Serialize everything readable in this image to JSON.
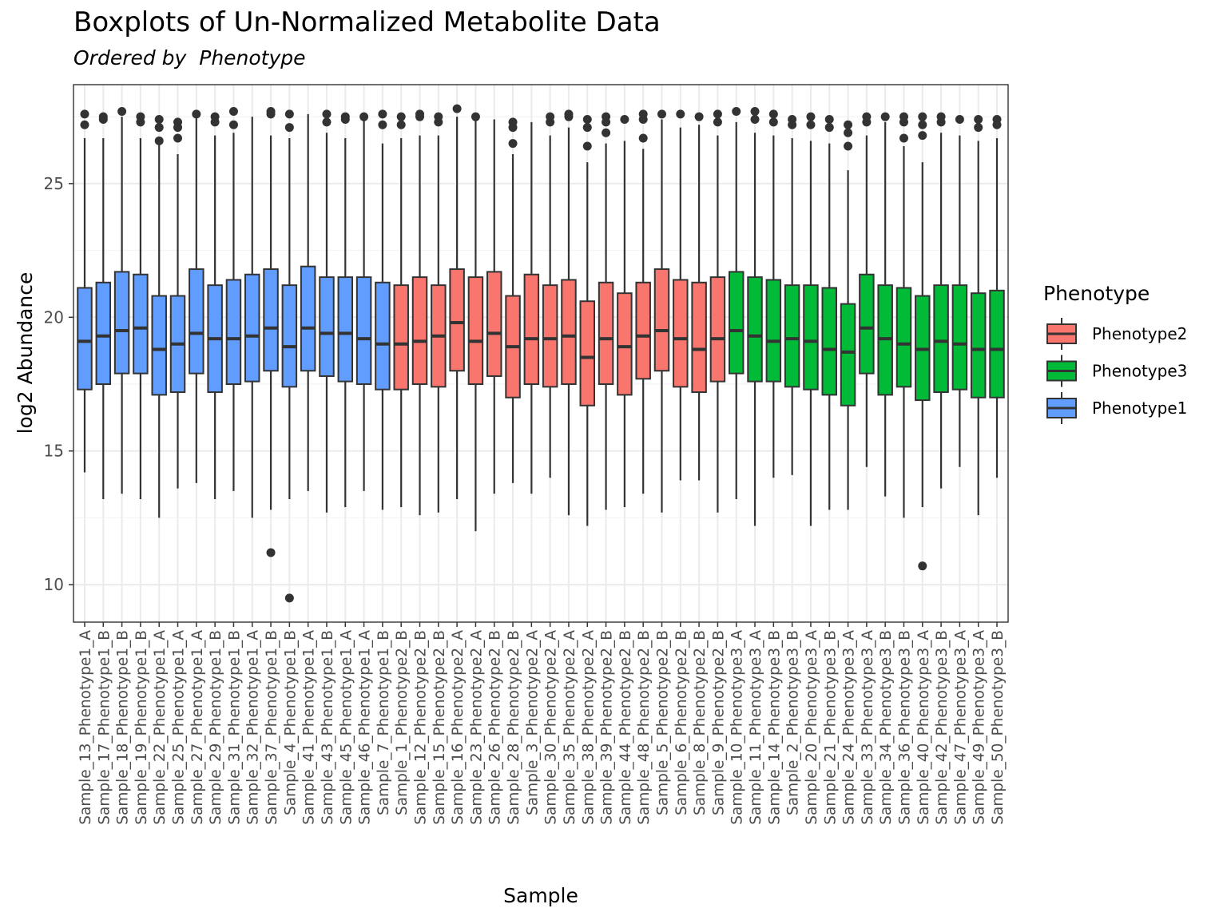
{
  "chart_data": {
    "type": "box",
    "title": "Boxplots of Un-Normalized Metabolite Data",
    "subtitle": "Ordered by  Phenotype",
    "xlabel": "Sample",
    "ylabel": "log2 Abundance",
    "ylim": [
      8.6,
      28.7
    ],
    "yticks": [
      10,
      15,
      20,
      25
    ],
    "grid": true,
    "legend": {
      "title": "Phenotype",
      "position": "right",
      "entries": [
        {
          "name": "Phenotype2",
          "color": "#F8766D"
        },
        {
          "name": "Phenotype3",
          "color": "#00BA38"
        },
        {
          "name": "Phenotype1",
          "color": "#619CFF"
        }
      ]
    },
    "colors": {
      "Phenotype1": "#619CFF",
      "Phenotype2": "#F8766D",
      "Phenotype3": "#00BA38"
    },
    "boxes": [
      {
        "sample": "Sample_13_Phenotype1_A",
        "group": "Phenotype1",
        "whisker_low": 14.2,
        "q1": 17.3,
        "median": 19.1,
        "q3": 21.1,
        "whisker_high": 26.7,
        "outliers": [
          27.2,
          27.6
        ]
      },
      {
        "sample": "Sample_17_Phenotype1_B",
        "group": "Phenotype1",
        "whisker_low": 13.2,
        "q1": 17.5,
        "median": 19.3,
        "q3": 21.3,
        "whisker_high": 26.7,
        "outliers": [
          27.4,
          27.5
        ]
      },
      {
        "sample": "Sample_18_Phenotype1_B",
        "group": "Phenotype1",
        "whisker_low": 13.4,
        "q1": 17.9,
        "median": 19.5,
        "q3": 21.7,
        "whisker_high": 27.5,
        "outliers": [
          27.7
        ]
      },
      {
        "sample": "Sample_19_Phenotype1_B",
        "group": "Phenotype1",
        "whisker_low": 13.2,
        "q1": 17.9,
        "median": 19.6,
        "q3": 21.6,
        "whisker_high": 26.7,
        "outliers": [
          27.3,
          27.5
        ]
      },
      {
        "sample": "Sample_22_Phenotype1_A",
        "group": "Phenotype1",
        "whisker_low": 12.5,
        "q1": 17.1,
        "median": 18.8,
        "q3": 20.8,
        "whisker_high": 26.5,
        "outliers": [
          26.6,
          27.1,
          27.4
        ]
      },
      {
        "sample": "Sample_25_Phenotype1_A",
        "group": "Phenotype1",
        "whisker_low": 13.6,
        "q1": 17.2,
        "median": 19.0,
        "q3": 20.8,
        "whisker_high": 26.1,
        "outliers": [
          26.7,
          27.1,
          27.3
        ]
      },
      {
        "sample": "Sample_27_Phenotype1_A",
        "group": "Phenotype1",
        "whisker_low": 13.8,
        "q1": 17.9,
        "median": 19.4,
        "q3": 21.8,
        "whisker_high": 27.5,
        "outliers": [
          27.6
        ]
      },
      {
        "sample": "Sample_29_Phenotype1_B",
        "group": "Phenotype1",
        "whisker_low": 13.2,
        "q1": 17.2,
        "median": 19.2,
        "q3": 21.2,
        "whisker_high": 26.8,
        "outliers": [
          27.3,
          27.5
        ]
      },
      {
        "sample": "Sample_31_Phenotype1_B",
        "group": "Phenotype1",
        "whisker_low": 13.5,
        "q1": 17.5,
        "median": 19.2,
        "q3": 21.4,
        "whisker_high": 26.9,
        "outliers": [
          27.2,
          27.7
        ]
      },
      {
        "sample": "Sample_32_Phenotype1_A",
        "group": "Phenotype1",
        "whisker_low": 12.5,
        "q1": 17.6,
        "median": 19.3,
        "q3": 21.6,
        "whisker_high": 27.5,
        "outliers": []
      },
      {
        "sample": "Sample_37_Phenotype1_B",
        "group": "Phenotype1",
        "whisker_low": 12.8,
        "q1": 18.0,
        "median": 19.6,
        "q3": 21.8,
        "whisker_high": 26.8,
        "outliers": [
          11.2,
          27.6,
          27.7
        ]
      },
      {
        "sample": "Sample_4_Phenotype1_B",
        "group": "Phenotype1",
        "whisker_low": 13.2,
        "q1": 17.4,
        "median": 18.9,
        "q3": 21.2,
        "whisker_high": 26.7,
        "outliers": [
          9.5,
          27.1,
          27.6
        ]
      },
      {
        "sample": "Sample_41_Phenotype1_A",
        "group": "Phenotype1",
        "whisker_low": 13.5,
        "q1": 18.0,
        "median": 19.6,
        "q3": 21.9,
        "whisker_high": 27.6,
        "outliers": []
      },
      {
        "sample": "Sample_43_Phenotype1_B",
        "group": "Phenotype1",
        "whisker_low": 12.7,
        "q1": 17.8,
        "median": 19.4,
        "q3": 21.5,
        "whisker_high": 26.9,
        "outliers": [
          27.3,
          27.6
        ]
      },
      {
        "sample": "Sample_45_Phenotype1_A",
        "group": "Phenotype1",
        "whisker_low": 12.9,
        "q1": 17.6,
        "median": 19.4,
        "q3": 21.5,
        "whisker_high": 26.7,
        "outliers": [
          27.4,
          27.5
        ]
      },
      {
        "sample": "Sample_46_Phenotype1_A",
        "group": "Phenotype1",
        "whisker_low": 13.5,
        "q1": 17.5,
        "median": 19.2,
        "q3": 21.5,
        "whisker_high": 27.4,
        "outliers": [
          27.5
        ]
      },
      {
        "sample": "Sample_7_Phenotype1_B",
        "group": "Phenotype1",
        "whisker_low": 12.8,
        "q1": 17.3,
        "median": 19.0,
        "q3": 21.3,
        "whisker_high": 26.5,
        "outliers": [
          27.2,
          27.6
        ]
      },
      {
        "sample": "Sample_1_Phenotype2_B",
        "group": "Phenotype2",
        "whisker_low": 12.9,
        "q1": 17.3,
        "median": 19.0,
        "q3": 21.2,
        "whisker_high": 26.7,
        "outliers": [
          27.2,
          27.5
        ]
      },
      {
        "sample": "Sample_12_Phenotype2_B",
        "group": "Phenotype2",
        "whisker_low": 12.6,
        "q1": 17.5,
        "median": 19.1,
        "q3": 21.5,
        "whisker_high": 26.8,
        "outliers": [
          27.5,
          27.6
        ]
      },
      {
        "sample": "Sample_15_Phenotype2_B",
        "group": "Phenotype2",
        "whisker_low": 12.7,
        "q1": 17.4,
        "median": 19.3,
        "q3": 21.2,
        "whisker_high": 26.8,
        "outliers": [
          27.3,
          27.5
        ]
      },
      {
        "sample": "Sample_16_Phenotype2_A",
        "group": "Phenotype2",
        "whisker_low": 13.2,
        "q1": 18.0,
        "median": 19.8,
        "q3": 21.8,
        "whisker_high": 27.5,
        "outliers": [
          27.8
        ]
      },
      {
        "sample": "Sample_23_Phenotype2_A",
        "group": "Phenotype2",
        "whisker_low": 12.0,
        "q1": 17.5,
        "median": 19.1,
        "q3": 21.5,
        "whisker_high": 27.4,
        "outliers": [
          27.5
        ]
      },
      {
        "sample": "Sample_26_Phenotype2_B",
        "group": "Phenotype2",
        "whisker_low": 13.4,
        "q1": 17.8,
        "median": 19.4,
        "q3": 21.7,
        "whisker_high": 27.4,
        "outliers": []
      },
      {
        "sample": "Sample_28_Phenotype2_B",
        "group": "Phenotype2",
        "whisker_low": 13.8,
        "q1": 17.0,
        "median": 18.9,
        "q3": 20.8,
        "whisker_high": 26.1,
        "outliers": [
          26.5,
          27.1,
          27.3
        ]
      },
      {
        "sample": "Sample_3_Phenotype2_A",
        "group": "Phenotype2",
        "whisker_low": 13.4,
        "q1": 17.5,
        "median": 19.2,
        "q3": 21.6,
        "whisker_high": 27.3,
        "outliers": []
      },
      {
        "sample": "Sample_30_Phenotype2_A",
        "group": "Phenotype2",
        "whisker_low": 14.0,
        "q1": 17.4,
        "median": 19.2,
        "q3": 21.2,
        "whisker_high": 26.8,
        "outliers": [
          27.3,
          27.5
        ]
      },
      {
        "sample": "Sample_35_Phenotype2_A",
        "group": "Phenotype2",
        "whisker_low": 12.6,
        "q1": 17.5,
        "median": 19.3,
        "q3": 21.4,
        "whisker_high": 27.1,
        "outliers": [
          27.5,
          27.6
        ]
      },
      {
        "sample": "Sample_38_Phenotype2_A",
        "group": "Phenotype2",
        "whisker_low": 12.2,
        "q1": 16.7,
        "median": 18.5,
        "q3": 20.6,
        "whisker_high": 25.8,
        "outliers": [
          26.4,
          27.1,
          27.4
        ]
      },
      {
        "sample": "Sample_39_Phenotype2_B",
        "group": "Phenotype2",
        "whisker_low": 12.8,
        "q1": 17.5,
        "median": 19.2,
        "q3": 21.3,
        "whisker_high": 26.5,
        "outliers": [
          26.9,
          27.3,
          27.5
        ]
      },
      {
        "sample": "Sample_44_Phenotype2_B",
        "group": "Phenotype2",
        "whisker_low": 12.9,
        "q1": 17.1,
        "median": 18.9,
        "q3": 20.9,
        "whisker_high": 26.6,
        "outliers": [
          27.4
        ]
      },
      {
        "sample": "Sample_48_Phenotype2_B",
        "group": "Phenotype2",
        "whisker_low": 13.4,
        "q1": 17.7,
        "median": 19.3,
        "q3": 21.3,
        "whisker_high": 26.3,
        "outliers": [
          26.7,
          27.4,
          27.6
        ]
      },
      {
        "sample": "Sample_5_Phenotype2_B",
        "group": "Phenotype2",
        "whisker_low": 12.7,
        "q1": 18.0,
        "median": 19.5,
        "q3": 21.8,
        "whisker_high": 27.4,
        "outliers": [
          27.6
        ]
      },
      {
        "sample": "Sample_6_Phenotype2_B",
        "group": "Phenotype2",
        "whisker_low": 13.9,
        "q1": 17.4,
        "median": 19.2,
        "q3": 21.4,
        "whisker_high": 27.1,
        "outliers": [
          27.6
        ]
      },
      {
        "sample": "Sample_8_Phenotype2_B",
        "group": "Phenotype2",
        "whisker_low": 13.9,
        "q1": 17.2,
        "median": 18.8,
        "q3": 21.3,
        "whisker_high": 27.2,
        "outliers": [
          27.5
        ]
      },
      {
        "sample": "Sample_9_Phenotype2_B",
        "group": "Phenotype2",
        "whisker_low": 12.7,
        "q1": 17.6,
        "median": 19.2,
        "q3": 21.5,
        "whisker_high": 26.8,
        "outliers": [
          27.3,
          27.6
        ]
      },
      {
        "sample": "Sample_10_Phenotype3_A",
        "group": "Phenotype3",
        "whisker_low": 13.2,
        "q1": 17.9,
        "median": 19.5,
        "q3": 21.7,
        "whisker_high": 27.3,
        "outliers": [
          27.7
        ]
      },
      {
        "sample": "Sample_11_Phenotype3_A",
        "group": "Phenotype3",
        "whisker_low": 12.2,
        "q1": 17.6,
        "median": 19.3,
        "q3": 21.5,
        "whisker_high": 26.9,
        "outliers": [
          27.4,
          27.7
        ]
      },
      {
        "sample": "Sample_14_Phenotype3_B",
        "group": "Phenotype3",
        "whisker_low": 14.0,
        "q1": 17.6,
        "median": 19.1,
        "q3": 21.4,
        "whisker_high": 26.8,
        "outliers": [
          27.3,
          27.6
        ]
      },
      {
        "sample": "Sample_2_Phenotype3_B",
        "group": "Phenotype3",
        "whisker_low": 14.1,
        "q1": 17.4,
        "median": 19.2,
        "q3": 21.2,
        "whisker_high": 26.7,
        "outliers": [
          27.2,
          27.4
        ]
      },
      {
        "sample": "Sample_20_Phenotype3_A",
        "group": "Phenotype3",
        "whisker_low": 12.2,
        "q1": 17.3,
        "median": 19.1,
        "q3": 21.2,
        "whisker_high": 26.6,
        "outliers": [
          27.2,
          27.5
        ]
      },
      {
        "sample": "Sample_21_Phenotype3_B",
        "group": "Phenotype3",
        "whisker_low": 12.8,
        "q1": 17.1,
        "median": 18.8,
        "q3": 21.1,
        "whisker_high": 26.5,
        "outliers": [
          27.1,
          27.4
        ]
      },
      {
        "sample": "Sample_24_Phenotype3_A",
        "group": "Phenotype3",
        "whisker_low": 12.8,
        "q1": 16.7,
        "median": 18.7,
        "q3": 20.5,
        "whisker_high": 25.5,
        "outliers": [
          26.4,
          26.9,
          27.2
        ]
      },
      {
        "sample": "Sample_33_Phenotype3_A",
        "group": "Phenotype3",
        "whisker_low": 14.4,
        "q1": 17.9,
        "median": 19.6,
        "q3": 21.6,
        "whisker_high": 26.8,
        "outliers": [
          27.3,
          27.5
        ]
      },
      {
        "sample": "Sample_34_Phenotype3_B",
        "group": "Phenotype3",
        "whisker_low": 13.3,
        "q1": 17.1,
        "median": 19.2,
        "q3": 21.2,
        "whisker_high": 27.3,
        "outliers": [
          27.5
        ]
      },
      {
        "sample": "Sample_36_Phenotype3_B",
        "group": "Phenotype3",
        "whisker_low": 12.5,
        "q1": 17.4,
        "median": 19.0,
        "q3": 21.1,
        "whisker_high": 26.4,
        "outliers": [
          26.7,
          27.3,
          27.5
        ]
      },
      {
        "sample": "Sample_40_Phenotype3_A",
        "group": "Phenotype3",
        "whisker_low": 12.9,
        "q1": 16.9,
        "median": 18.8,
        "q3": 20.8,
        "whisker_high": 25.8,
        "outliers": [
          10.7,
          26.8,
          27.2,
          27.5
        ]
      },
      {
        "sample": "Sample_42_Phenotype3_B",
        "group": "Phenotype3",
        "whisker_low": 13.6,
        "q1": 17.2,
        "median": 19.1,
        "q3": 21.2,
        "whisker_high": 26.9,
        "outliers": [
          27.3,
          27.5
        ]
      },
      {
        "sample": "Sample_47_Phenotype3_A",
        "group": "Phenotype3",
        "whisker_low": 14.4,
        "q1": 17.3,
        "median": 19.0,
        "q3": 21.2,
        "whisker_high": 26.8,
        "outliers": [
          27.4
        ]
      },
      {
        "sample": "Sample_49_Phenotype3_A",
        "group": "Phenotype3",
        "whisker_low": 12.6,
        "q1": 17.0,
        "median": 18.8,
        "q3": 20.9,
        "whisker_high": 26.6,
        "outliers": [
          27.1,
          27.4
        ]
      },
      {
        "sample": "Sample_50_Phenotype3_B",
        "group": "Phenotype3",
        "whisker_low": 14.0,
        "q1": 17.0,
        "median": 18.8,
        "q3": 21.0,
        "whisker_high": 26.7,
        "outliers": [
          27.2,
          27.4
        ]
      }
    ]
  }
}
